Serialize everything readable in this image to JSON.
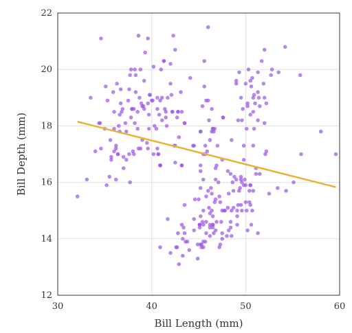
{
  "chart_data": {
    "type": "scatter",
    "xlabel": "Bill Length (mm)",
    "ylabel": "Bill Depth (mm)",
    "xlim": [
      30,
      60
    ],
    "ylim": [
      12,
      22
    ],
    "xticks": [
      "30",
      "40",
      "50",
      "60"
    ],
    "yticks": [
      "12",
      "14",
      "16",
      "18",
      "20",
      "22"
    ],
    "grid": true,
    "colors": {
      "points": "#9b59e8",
      "trend": "#e8b234",
      "axis": "#333333",
      "grid": "#e0e0e0"
    },
    "points": [
      [
        32.1,
        15.5
      ],
      [
        33.1,
        16.1
      ],
      [
        33.5,
        19.0
      ],
      [
        34.0,
        17.1
      ],
      [
        34.4,
        18.1
      ],
      [
        34.6,
        21.1
      ],
      [
        34.6,
        17.2
      ],
      [
        35.0,
        17.9
      ],
      [
        35.1,
        19.4
      ],
      [
        35.3,
        18.9
      ],
      [
        35.5,
        16.2
      ],
      [
        35.6,
        17.5
      ],
      [
        35.7,
        16.9
      ],
      [
        35.9,
        19.2
      ],
      [
        36.0,
        18.5
      ],
      [
        36.0,
        17.9
      ],
      [
        36.2,
        16.1
      ],
      [
        36.2,
        17.2
      ],
      [
        36.4,
        17.0
      ],
      [
        36.5,
        18.0
      ],
      [
        36.6,
        17.8
      ],
      [
        36.7,
        19.3
      ],
      [
        36.8,
        18.5
      ],
      [
        36.9,
        18.6
      ],
      [
        37.0,
        16.9
      ],
      [
        37.2,
        18.1
      ],
      [
        37.3,
        17.8
      ],
      [
        37.5,
        18.9
      ],
      [
        37.6,
        19.3
      ],
      [
        37.7,
        16.0
      ],
      [
        37.8,
        18.3
      ],
      [
        37.9,
        18.6
      ],
      [
        38.0,
        17.1
      ],
      [
        38.1,
        18.6
      ],
      [
        38.2,
        18.1
      ],
      [
        38.3,
        19.2
      ],
      [
        38.5,
        17.9
      ],
      [
        38.6,
        21.2
      ],
      [
        38.7,
        19.0
      ],
      [
        38.8,
        17.2
      ],
      [
        38.9,
        18.8
      ],
      [
        39.0,
        17.5
      ],
      [
        39.1,
        18.7
      ],
      [
        39.2,
        19.6
      ],
      [
        39.3,
        20.6
      ],
      [
        39.5,
        17.4
      ],
      [
        39.6,
        18.8
      ],
      [
        39.7,
        18.4
      ],
      [
        39.8,
        19.1
      ],
      [
        40.0,
        18.9
      ],
      [
        40.1,
        18.9
      ],
      [
        40.2,
        17.0
      ],
      [
        40.3,
        18.0
      ],
      [
        40.5,
        17.9
      ],
      [
        40.6,
        18.6
      ],
      [
        40.7,
        17.0
      ],
      [
        40.8,
        18.4
      ],
      [
        40.9,
        16.6
      ],
      [
        41.0,
        20.0
      ],
      [
        41.1,
        19.0
      ],
      [
        41.3,
        20.3
      ],
      [
        41.4,
        18.6
      ],
      [
        41.5,
        18.3
      ],
      [
        41.6,
        18.0
      ],
      [
        41.7,
        19.0
      ],
      [
        42.0,
        19.5
      ],
      [
        42.1,
        19.1
      ],
      [
        42.2,
        18.5
      ],
      [
        42.3,
        21.2
      ],
      [
        42.5,
        20.7
      ],
      [
        42.7,
        18.3
      ],
      [
        42.8,
        18.5
      ],
      [
        42.9,
        17.6
      ],
      [
        43.1,
        19.2
      ],
      [
        43.2,
        18.5
      ],
      [
        43.5,
        18.1
      ],
      [
        44.1,
        19.7
      ],
      [
        44.5,
        17.3
      ],
      [
        45.2,
        17.8
      ],
      [
        45.6,
        20.3
      ],
      [
        45.8,
        18.9
      ],
      [
        46.0,
        21.5
      ],
      [
        46.5,
        17.9
      ],
      [
        47.6,
        18.3
      ],
      [
        40.9,
        16.6
      ],
      [
        36.4,
        17.0
      ],
      [
        37.9,
        18.6
      ],
      [
        39.0,
        18.7
      ],
      [
        41.5,
        18.5
      ],
      [
        38.1,
        17.0
      ],
      [
        39.7,
        17.9
      ],
      [
        36.3,
        19.5
      ],
      [
        37.8,
        20.0
      ],
      [
        38.2,
        20.0
      ],
      [
        40.6,
        19.0
      ],
      [
        35.7,
        16.8
      ],
      [
        36.0,
        17.1
      ],
      [
        37.3,
        16.8
      ],
      [
        38.8,
        20.0
      ],
      [
        39.6,
        21.1
      ],
      [
        40.2,
        20.1
      ],
      [
        37.6,
        17.0
      ],
      [
        41.1,
        18.2
      ],
      [
        39.2,
        18.6
      ],
      [
        42.0,
        20.2
      ],
      [
        38.6,
        17.2
      ],
      [
        43.2,
        16.6
      ],
      [
        40.9,
        18.9
      ],
      [
        37.0,
        16.5
      ],
      [
        38.5,
        18.5
      ],
      [
        41.3,
        20.3
      ],
      [
        35.2,
        15.9
      ],
      [
        36.6,
        18.4
      ],
      [
        38.3,
        19.8
      ],
      [
        39.6,
        17.2
      ],
      [
        34.5,
        18.1
      ],
      [
        36.7,
        18.8
      ],
      [
        37.7,
        19.8
      ],
      [
        40.7,
        17.0
      ],
      [
        42.2,
        18.5
      ],
      [
        39.8,
        19.1
      ],
      [
        40.6,
        17.2
      ],
      [
        36.2,
        17.3
      ],
      [
        42.8,
        18.5
      ],
      [
        45.1,
        14.5
      ],
      [
        46.5,
        14.5
      ],
      [
        45.4,
        14.6
      ],
      [
        46.7,
        15.3
      ],
      [
        43.3,
        13.4
      ],
      [
        46.8,
        15.4
      ],
      [
        40.9,
        13.7
      ],
      [
        49.0,
        16.1
      ],
      [
        45.5,
        13.7
      ],
      [
        48.4,
        14.6
      ],
      [
        45.8,
        14.6
      ],
      [
        49.3,
        15.7
      ],
      [
        42.0,
        13.5
      ],
      [
        49.2,
        15.2
      ],
      [
        46.2,
        14.5
      ],
      [
        48.7,
        15.1
      ],
      [
        50.2,
        14.3
      ],
      [
        45.1,
        14.5
      ],
      [
        46.5,
        14.5
      ],
      [
        46.3,
        15.8
      ],
      [
        42.9,
        13.1
      ],
      [
        46.1,
        15.1
      ],
      [
        44.5,
        14.3
      ],
      [
        47.8,
        15.0
      ],
      [
        48.2,
        14.3
      ],
      [
        50.0,
        15.3
      ],
      [
        47.3,
        15.3
      ],
      [
        42.8,
        14.2
      ],
      [
        45.1,
        14.5
      ],
      [
        59.6,
        17.0
      ],
      [
        49.1,
        14.8
      ],
      [
        48.4,
        16.3
      ],
      [
        42.6,
        13.7
      ],
      [
        44.4,
        17.3
      ],
      [
        44.0,
        13.6
      ],
      [
        48.7,
        15.7
      ],
      [
        42.7,
        13.7
      ],
      [
        49.6,
        16.0
      ],
      [
        45.3,
        13.7
      ],
      [
        49.6,
        15.0
      ],
      [
        50.5,
        15.9
      ],
      [
        43.6,
        13.9
      ],
      [
        45.5,
        13.9
      ],
      [
        50.5,
        15.9
      ],
      [
        44.9,
        13.3
      ],
      [
        45.2,
        15.8
      ],
      [
        46.6,
        14.2
      ],
      [
        48.5,
        14.1
      ],
      [
        45.1,
        14.4
      ],
      [
        50.1,
        15.0
      ],
      [
        46.5,
        14.4
      ],
      [
        45.0,
        15.4
      ],
      [
        43.8,
        13.9
      ],
      [
        45.5,
        15.0
      ],
      [
        43.2,
        14.5
      ],
      [
        50.4,
        15.3
      ],
      [
        45.3,
        13.8
      ],
      [
        46.2,
        14.9
      ],
      [
        45.7,
        13.9
      ],
      [
        54.3,
        15.7
      ],
      [
        45.8,
        14.2
      ],
      [
        49.8,
        16.8
      ],
      [
        46.2,
        14.4
      ],
      [
        49.5,
        16.2
      ],
      [
        43.5,
        14.2
      ],
      [
        50.7,
        15.0
      ],
      [
        47.7,
        15.0
      ],
      [
        46.4,
        15.6
      ],
      [
        48.2,
        15.6
      ],
      [
        46.5,
        14.8
      ],
      [
        46.4,
        15.0
      ],
      [
        48.6,
        16.0
      ],
      [
        47.5,
        14.2
      ],
      [
        51.1,
        16.3
      ],
      [
        45.2,
        13.8
      ],
      [
        45.2,
        16.4
      ],
      [
        49.1,
        14.5
      ],
      [
        52.5,
        15.6
      ],
      [
        47.4,
        14.6
      ],
      [
        50.0,
        15.9
      ],
      [
        44.9,
        13.8
      ],
      [
        50.8,
        17.3
      ],
      [
        43.4,
        14.4
      ],
      [
        51.3,
        14.2
      ],
      [
        47.5,
        14.0
      ],
      [
        52.1,
        17.0
      ],
      [
        47.5,
        15.0
      ],
      [
        52.2,
        17.1
      ],
      [
        45.5,
        14.5
      ],
      [
        49.5,
        16.1
      ],
      [
        44.5,
        14.7
      ],
      [
        50.8,
        15.7
      ],
      [
        49.4,
        15.8
      ],
      [
        46.9,
        14.6
      ],
      [
        48.4,
        14.4
      ],
      [
        51.1,
        16.5
      ],
      [
        48.5,
        15.0
      ],
      [
        55.9,
        17.0
      ],
      [
        47.2,
        15.5
      ],
      [
        49.1,
        15.0
      ],
      [
        47.3,
        13.8
      ],
      [
        46.8,
        16.1
      ],
      [
        41.7,
        14.7
      ],
      [
        53.4,
        15.8
      ],
      [
        43.3,
        14.0
      ],
      [
        48.1,
        15.1
      ],
      [
        50.5,
        15.2
      ],
      [
        49.8,
        15.9
      ],
      [
        43.5,
        15.2
      ],
      [
        51.5,
        16.3
      ],
      [
        46.2,
        14.1
      ],
      [
        55.1,
        16.0
      ],
      [
        48.8,
        16.2
      ],
      [
        47.2,
        13.7
      ],
      [
        46.8,
        14.3
      ],
      [
        50.4,
        15.7
      ],
      [
        45.2,
        14.8
      ],
      [
        49.9,
        16.1
      ],
      [
        46.5,
        17.9
      ],
      [
        50.0,
        19.5
      ],
      [
        51.3,
        19.2
      ],
      [
        45.4,
        18.7
      ],
      [
        52.7,
        19.8
      ],
      [
        45.2,
        17.8
      ],
      [
        46.1,
        18.2
      ],
      [
        51.3,
        18.2
      ],
      [
        46.0,
        18.9
      ],
      [
        51.3,
        19.9
      ],
      [
        46.6,
        17.8
      ],
      [
        51.7,
        20.3
      ],
      [
        47.0,
        17.3
      ],
      [
        52.0,
        18.1
      ],
      [
        45.9,
        17.1
      ],
      [
        50.5,
        19.6
      ],
      [
        50.3,
        20.0
      ],
      [
        58.0,
        17.8
      ],
      [
        46.4,
        18.6
      ],
      [
        49.2,
        18.2
      ],
      [
        42.4,
        17.3
      ],
      [
        48.5,
        17.5
      ],
      [
        43.2,
        16.6
      ],
      [
        50.6,
        19.4
      ],
      [
        46.7,
        17.9
      ],
      [
        52.0,
        19.0
      ],
      [
        50.5,
        18.4
      ],
      [
        49.5,
        19.0
      ],
      [
        46.4,
        17.8
      ],
      [
        52.8,
        20.0
      ],
      [
        40.9,
        16.6
      ],
      [
        54.2,
        20.8
      ],
      [
        42.5,
        16.7
      ],
      [
        51.0,
        18.8
      ],
      [
        49.7,
        18.6
      ],
      [
        47.5,
        16.8
      ],
      [
        47.6,
        18.3
      ],
      [
        52.0,
        20.7
      ],
      [
        46.9,
        16.6
      ],
      [
        53.5,
        19.9
      ],
      [
        49.0,
        19.5
      ],
      [
        46.2,
        17.5
      ],
      [
        50.9,
        19.1
      ],
      [
        45.5,
        17.0
      ],
      [
        50.9,
        17.9
      ],
      [
        50.8,
        18.5
      ],
      [
        50.1,
        17.9
      ],
      [
        49.0,
        19.6
      ],
      [
        51.5,
        18.7
      ],
      [
        49.8,
        17.3
      ],
      [
        48.1,
        16.4
      ],
      [
        51.4,
        19.0
      ],
      [
        45.7,
        17.3
      ],
      [
        50.7,
        19.7
      ],
      [
        42.5,
        17.3
      ],
      [
        52.2,
        18.8
      ],
      [
        45.2,
        16.6
      ],
      [
        49.3,
        19.9
      ],
      [
        50.2,
        18.8
      ],
      [
        45.6,
        19.4
      ],
      [
        51.9,
        19.5
      ],
      [
        46.8,
        16.5
      ],
      [
        45.7,
        17.0
      ],
      [
        55.8,
        19.8
      ],
      [
        43.5,
        18.1
      ],
      [
        49.6,
        18.2
      ],
      [
        50.8,
        19.0
      ],
      [
        50.2,
        18.7
      ],
      [
        45.5,
        16.1
      ],
      [
        45.8,
        15.5
      ],
      [
        44.6,
        15.4
      ],
      [
        47.1,
        16.0
      ],
      [
        46.0,
        15.7
      ],
      [
        49.5,
        15.2
      ],
      [
        48.0,
        14.1
      ],
      [
        50.6,
        14.5
      ]
    ],
    "trend": [
      [
        32.1,
        18.15
      ],
      [
        59.6,
        15.83
      ]
    ]
  }
}
